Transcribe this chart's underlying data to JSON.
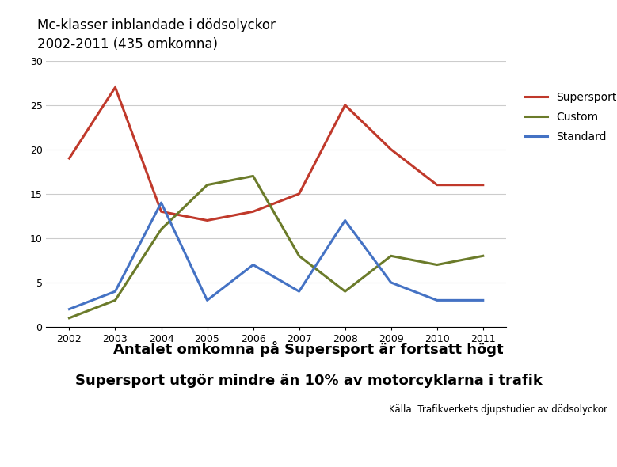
{
  "title_line1": "Mc-klasser inblandade i dödsolyckor",
  "title_line2": "2002-2011 (435 omkomna)",
  "years": [
    2002,
    2003,
    2004,
    2005,
    2006,
    2007,
    2008,
    2009,
    2010,
    2011
  ],
  "supersport": [
    19,
    27,
    13,
    12,
    13,
    15,
    25,
    20,
    16,
    16
  ],
  "custom": [
    1,
    3,
    11,
    16,
    17,
    8,
    4,
    8,
    7,
    8
  ],
  "standard": [
    2,
    4,
    14,
    3,
    7,
    4,
    12,
    5,
    3,
    3
  ],
  "supersport_color": "#C0392B",
  "custom_color": "#6B7B2A",
  "standard_color": "#4472C4",
  "ylim": [
    0,
    30
  ],
  "yticks": [
    0,
    5,
    10,
    15,
    20,
    25,
    30
  ],
  "footer_line1": "Antalet omkomna på Supersport är fortsatt högt",
  "footer_line2": "Supersport utgör mindre än 10% av motorcyklarna i trafik",
  "source_text": "Källa: Trafikverkets djupstudier av dödsolyckor",
  "footer_bg": "#A8A8A8",
  "trafikverket_red": "#C1272D",
  "background_color": "#FFFFFF",
  "plot_bg": "#FFFFFF",
  "grid_color": "#CCCCCC",
  "title_fontsize": 12,
  "footer_fontsize": 13,
  "source_fontsize": 8.5,
  "tick_fontsize": 9,
  "legend_fontsize": 10
}
